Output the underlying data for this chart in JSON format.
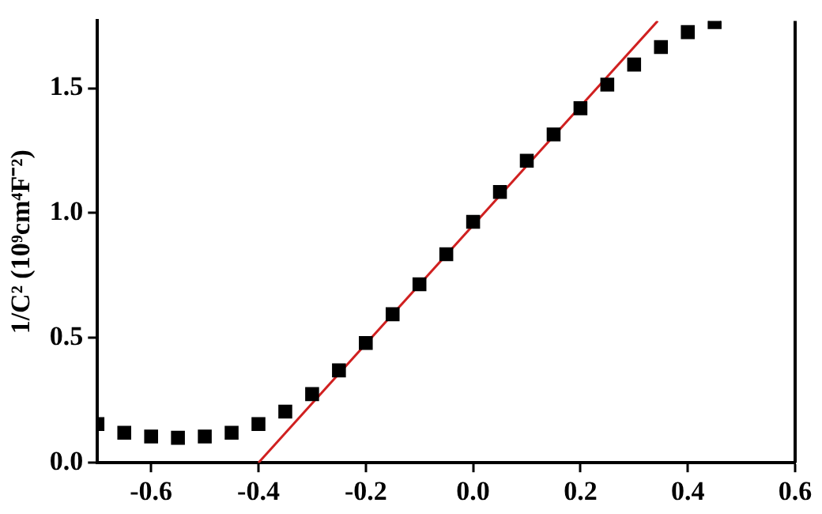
{
  "chart_data": {
    "type": "scatter",
    "ylabel": "1/C² (10⁹cm⁴F⁻²)",
    "marker": "square",
    "grid": false,
    "legend": false,
    "xlim": [
      -0.7,
      0.6
    ],
    "xticks": [
      -0.6,
      -0.4,
      -0.2,
      {
        "value": 0,
        "label": "0.0"
      },
      0.2,
      0.4,
      0.6
    ],
    "ylim": [
      0,
      1.77
    ],
    "yticks": [
      {
        "value": 0,
        "label": "0.0"
      },
      0.5,
      {
        "value": 1,
        "label": "1.0"
      },
      1.5
    ],
    "x": [
      -0.7,
      -0.65,
      -0.6,
      -0.55,
      -0.5,
      -0.45,
      -0.4,
      -0.35,
      -0.3,
      -0.25,
      -0.2,
      -0.15,
      -0.1,
      -0.05,
      0.0,
      0.05,
      0.1,
      0.15,
      0.2,
      0.25,
      0.3,
      0.35,
      0.4,
      0.45
    ],
    "series": [
      {
        "color": "#000000",
        "values": [
          0.155,
          0.12,
          0.105,
          0.1,
          0.105,
          0.12,
          0.155,
          0.205,
          0.275,
          0.37,
          0.48,
          0.595,
          0.715,
          0.835,
          0.965,
          1.085,
          1.21,
          1.315,
          1.42,
          1.515,
          1.595,
          1.665,
          1.725,
          1.765
        ]
      },
      {
        "type": "line",
        "color": "#d02020",
        "marker": "none",
        "x": [
          -0.4,
          0.344
        ],
        "values": [
          0,
          1.77
        ]
      }
    ]
  }
}
